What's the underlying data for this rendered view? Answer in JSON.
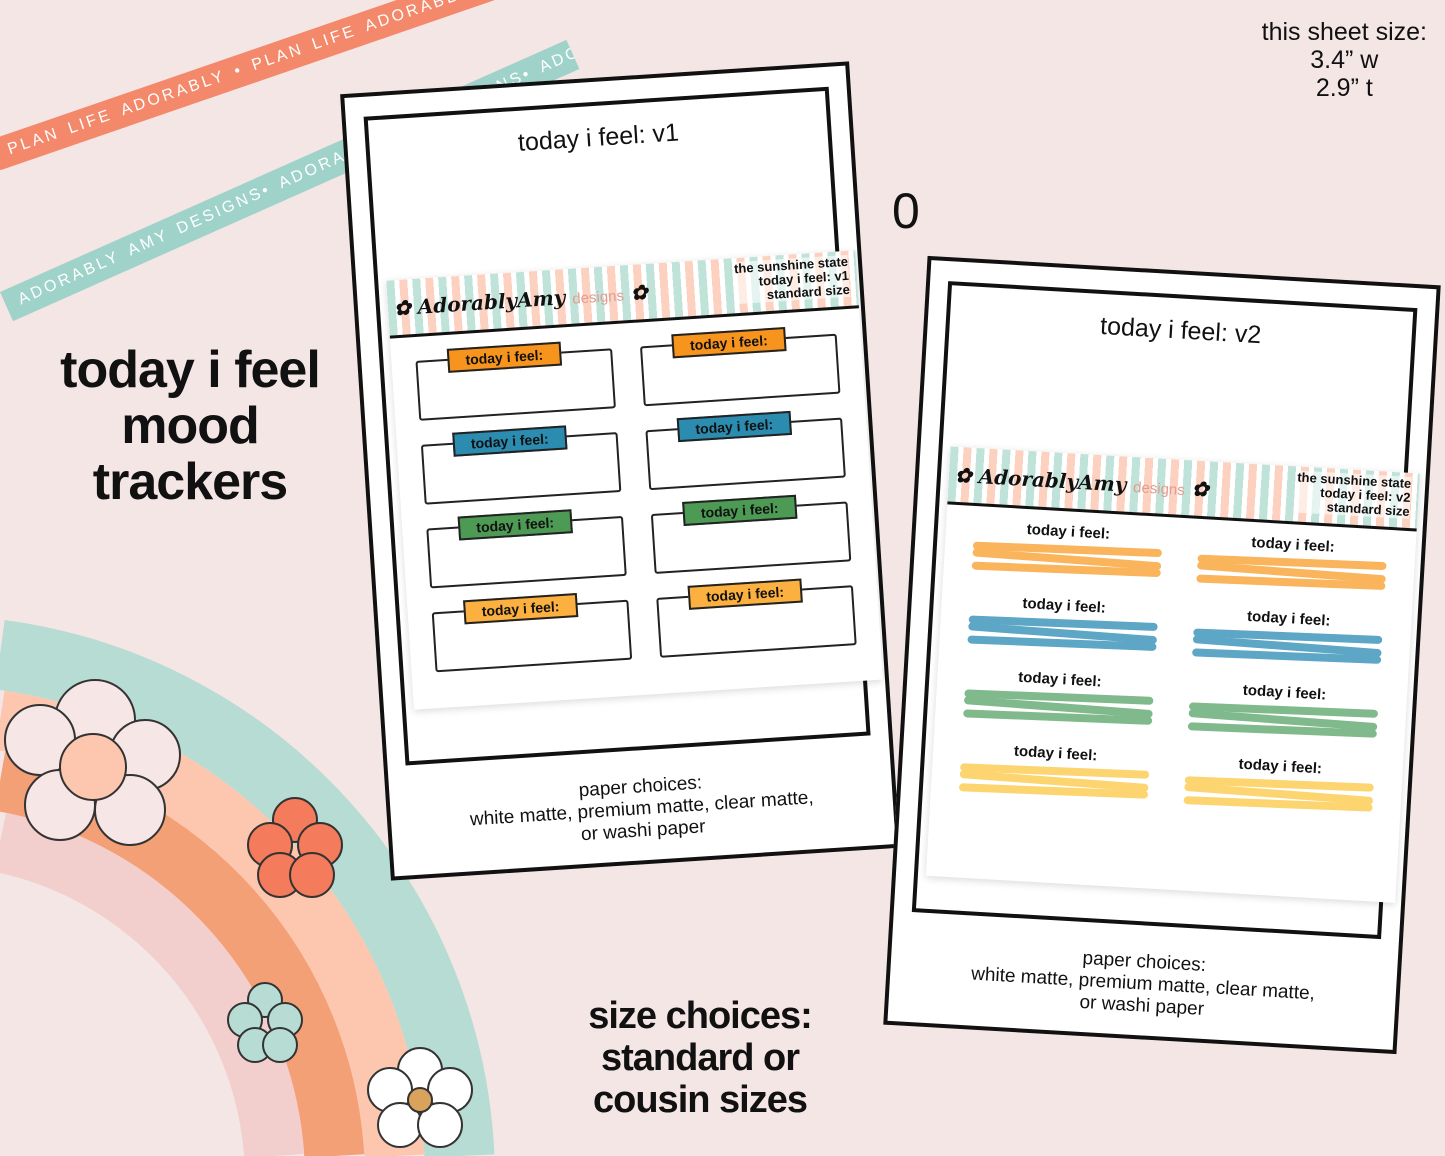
{
  "ribbons": {
    "coral": "PLAN LIFE ADORABLY • PLAN LIFE ADORABLY • PLAN LIFE ADORABLY",
    "teal": "ADORABLY AMY DESIGNS• ADORABLY AMY DESIGNS• ADORABLY AMY DESIGNS•"
  },
  "headline": [
    "today i feel",
    "mood",
    "trackers"
  ],
  "sheet_size": {
    "label": "this sheet size:",
    "width": "3.4” w",
    "height": "2.9” t"
  },
  "size_choices": [
    "size choices:",
    "standard or",
    "cousin sizes"
  ],
  "separator": "0",
  "brand": {
    "name": "AdorablyAmy",
    "suffix": "designs"
  },
  "cards": [
    {
      "title": "today i feel: v1",
      "meta": [
        "the sunshine state",
        "today i feel: v1",
        "standard size"
      ],
      "label": "today i feel:",
      "colors": [
        "#f7941d",
        "#f7941d",
        "#2b8cb0",
        "#2b8cb0",
        "#4c9a54",
        "#4c9a54",
        "#fbb040",
        "#fbb040"
      ],
      "paper": [
        "paper choices:",
        "white matte, premium matte, clear matte,",
        "or washi paper"
      ]
    },
    {
      "title": "today i feel: v2",
      "meta": [
        "the sunshine state",
        "today i feel: v2",
        "standard size"
      ],
      "label": "today i feel:",
      "colors": [
        "#f9b45c",
        "#f9b45c",
        "#5da6c6",
        "#5da6c6",
        "#80ba8c",
        "#80ba8c",
        "#fcd470",
        "#fcd470"
      ],
      "paper": [
        "paper choices:",
        "white matte, premium matte, clear matte,",
        "or washi paper"
      ]
    }
  ]
}
